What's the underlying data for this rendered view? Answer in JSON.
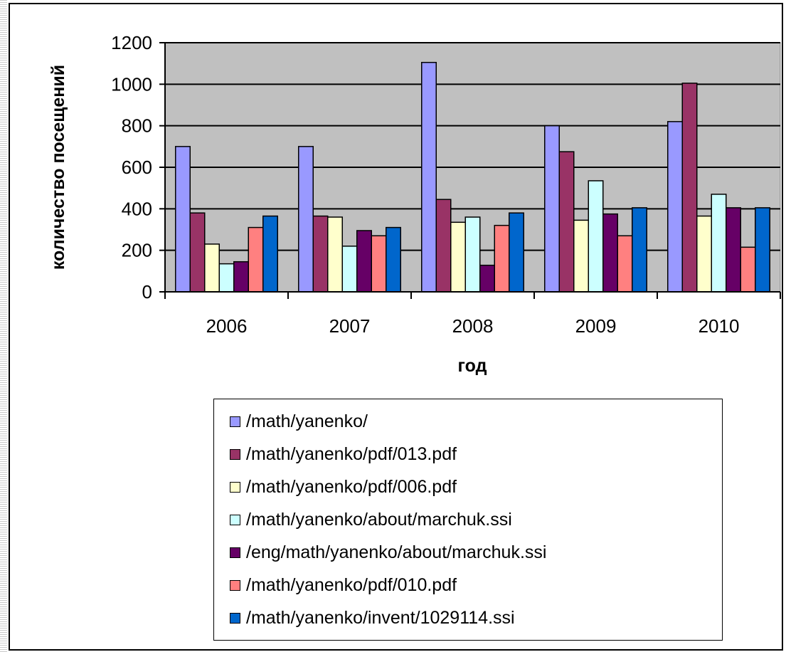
{
  "chart_data": {
    "type": "bar",
    "categories": [
      "2006",
      "2007",
      "2008",
      "2009",
      "2010"
    ],
    "series": [
      {
        "name": "/math/yanenko/",
        "color": "#9999FF",
        "values": [
          700,
          700,
          1105,
          800,
          820
        ]
      },
      {
        "name": "/math/yanenko/pdf/013.pdf",
        "color": "#993366",
        "values": [
          380,
          365,
          445,
          675,
          1005
        ]
      },
      {
        "name": "/math/yanenko/pdf/006.pdf",
        "color": "#FFFFCC",
        "values": [
          230,
          360,
          335,
          345,
          365
        ]
      },
      {
        "name": "/math/yanenko/about/marchuk.ssi",
        "color": "#CCFFFF",
        "values": [
          135,
          220,
          360,
          535,
          470
        ]
      },
      {
        "name": "/eng/math/yanenko/about/marchuk.ssi",
        "color": "#660066",
        "values": [
          145,
          295,
          128,
          375,
          405
        ]
      },
      {
        "name": "/math/yanenko/pdf/010.pdf",
        "color": "#FF8080",
        "values": [
          310,
          270,
          320,
          270,
          215
        ]
      },
      {
        "name": "/math/yanenko/invent/1029114.ssi",
        "color": "#0066CC",
        "values": [
          365,
          310,
          380,
          405,
          405
        ]
      }
    ],
    "ylim": [
      0,
      1200
    ],
    "yticks": [
      "0",
      "200",
      "400",
      "600",
      "800",
      "1000",
      "1200"
    ],
    "ylabel": "количество посещений",
    "xlabel": "год",
    "grid": true,
    "plot_background": "#C0C0C0",
    "legend_position": "bottom"
  }
}
